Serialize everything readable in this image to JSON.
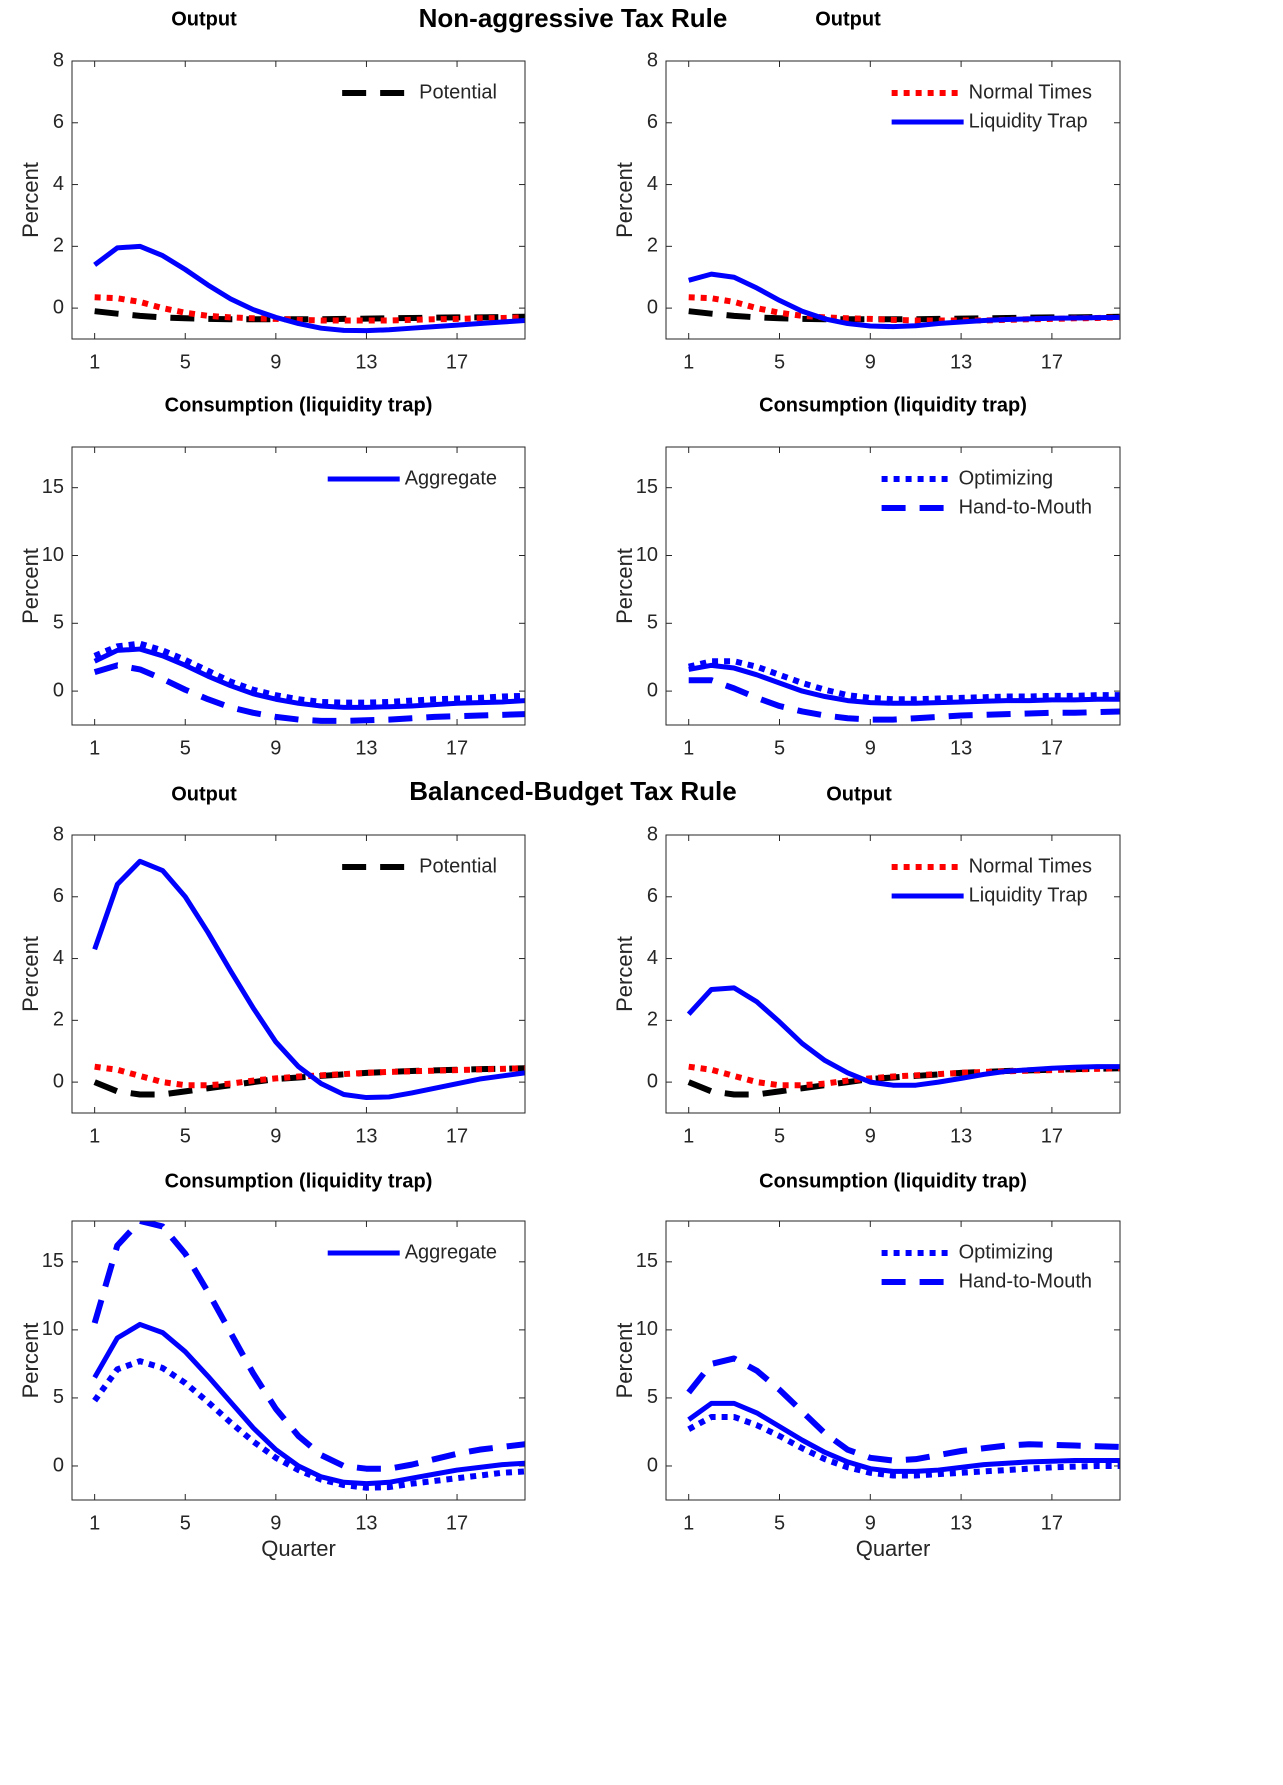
{
  "headings": [
    "Non-aggressive Tax Rule",
    "Balanced-Budget Tax Rule"
  ],
  "chart_data": [
    {
      "type": "line",
      "title": "Output",
      "ylabel": "Percent",
      "x": [
        1,
        2,
        3,
        4,
        5,
        6,
        7,
        8,
        9,
        10,
        11,
        12,
        13,
        14,
        15,
        16,
        17,
        18,
        19,
        20
      ],
      "xlim": [
        0,
        20
      ],
      "xticks": [
        1,
        5,
        9,
        13,
        17
      ],
      "ylim": [
        -1,
        8
      ],
      "yticks": [
        0,
        2,
        4,
        6,
        8
      ],
      "series": [
        {
          "name": "Potential",
          "color": "#000000",
          "style": "dashed",
          "values": [
            -0.1,
            -0.18,
            -0.25,
            -0.3,
            -0.33,
            -0.35,
            -0.36,
            -0.36,
            -0.36,
            -0.36,
            -0.36,
            -0.35,
            -0.34,
            -0.33,
            -0.32,
            -0.31,
            -0.3,
            -0.3,
            -0.29,
            -0.28
          ]
        },
        {
          "color": "#ff0000",
          "style": "dotted",
          "values": [
            0.35,
            0.32,
            0.2,
            0.0,
            -0.15,
            -0.25,
            -0.3,
            -0.33,
            -0.35,
            -0.38,
            -0.4,
            -0.4,
            -0.4,
            -0.4,
            -0.38,
            -0.36,
            -0.35,
            -0.33,
            -0.32,
            -0.3
          ]
        },
        {
          "color": "#0000ff",
          "style": "solid",
          "values": [
            1.4,
            1.95,
            2.0,
            1.7,
            1.25,
            0.75,
            0.3,
            -0.05,
            -0.3,
            -0.5,
            -0.65,
            -0.72,
            -0.73,
            -0.7,
            -0.65,
            -0.6,
            -0.55,
            -0.5,
            -0.45,
            -0.4
          ]
        }
      ]
    },
    {
      "type": "line",
      "title": "Output",
      "ylabel": "Percent",
      "x": [
        1,
        2,
        3,
        4,
        5,
        6,
        7,
        8,
        9,
        10,
        11,
        12,
        13,
        14,
        15,
        16,
        17,
        18,
        19,
        20
      ],
      "xlim": [
        0,
        20
      ],
      "xticks": [
        1,
        5,
        9,
        13,
        17
      ],
      "ylim": [
        -1,
        8
      ],
      "yticks": [
        0,
        2,
        4,
        6,
        8
      ],
      "series": [
        {
          "color": "#000000",
          "style": "dashed",
          "values": [
            -0.1,
            -0.18,
            -0.25,
            -0.3,
            -0.33,
            -0.35,
            -0.36,
            -0.36,
            -0.36,
            -0.36,
            -0.36,
            -0.35,
            -0.34,
            -0.33,
            -0.32,
            -0.31,
            -0.3,
            -0.3,
            -0.29,
            -0.28
          ]
        },
        {
          "name": "Normal Times",
          "color": "#ff0000",
          "style": "dotted",
          "values": [
            0.35,
            0.32,
            0.2,
            0.0,
            -0.15,
            -0.25,
            -0.3,
            -0.33,
            -0.35,
            -0.38,
            -0.4,
            -0.4,
            -0.4,
            -0.4,
            -0.38,
            -0.36,
            -0.35,
            -0.33,
            -0.32,
            -0.3
          ]
        },
        {
          "name": "Liquidity Trap",
          "color": "#0000ff",
          "style": "solid",
          "values": [
            0.9,
            1.1,
            1.0,
            0.65,
            0.25,
            -0.1,
            -0.35,
            -0.5,
            -0.58,
            -0.6,
            -0.57,
            -0.5,
            -0.45,
            -0.4,
            -0.37,
            -0.35,
            -0.33,
            -0.32,
            -0.31,
            -0.3
          ]
        }
      ]
    },
    {
      "type": "line",
      "title": "Consumption (liquidity trap)",
      "ylabel": "Percent",
      "x": [
        1,
        2,
        3,
        4,
        5,
        6,
        7,
        8,
        9,
        10,
        11,
        12,
        13,
        14,
        15,
        16,
        17,
        18,
        19,
        20
      ],
      "xlim": [
        0,
        20
      ],
      "xticks": [
        1,
        5,
        9,
        13,
        17
      ],
      "ylim": [
        -2.5,
        18
      ],
      "yticks": [
        0,
        5,
        10,
        15
      ],
      "series": [
        {
          "name": "Aggregate",
          "color": "#0000ff",
          "style": "solid",
          "values": [
            2.2,
            3.0,
            3.1,
            2.6,
            1.9,
            1.1,
            0.4,
            -0.2,
            -0.6,
            -0.9,
            -1.1,
            -1.2,
            -1.2,
            -1.15,
            -1.1,
            -1.0,
            -0.9,
            -0.85,
            -0.8,
            -0.7
          ]
        },
        {
          "color": "#0000ff",
          "style": "dotted",
          "values": [
            2.6,
            3.3,
            3.5,
            3.0,
            2.3,
            1.5,
            0.7,
            0.1,
            -0.3,
            -0.6,
            -0.8,
            -0.85,
            -0.85,
            -0.8,
            -0.7,
            -0.6,
            -0.55,
            -0.5,
            -0.4,
            -0.35
          ]
        },
        {
          "color": "#0000ff",
          "style": "dashed",
          "values": [
            1.4,
            1.9,
            1.6,
            0.9,
            0.1,
            -0.6,
            -1.2,
            -1.6,
            -1.9,
            -2.1,
            -2.2,
            -2.2,
            -2.15,
            -2.1,
            -2.0,
            -1.9,
            -1.85,
            -1.8,
            -1.75,
            -1.7
          ]
        }
      ]
    },
    {
      "type": "line",
      "title": "Consumption (liquidity trap)",
      "ylabel": "Percent",
      "x": [
        1,
        2,
        3,
        4,
        5,
        6,
        7,
        8,
        9,
        10,
        11,
        12,
        13,
        14,
        15,
        16,
        17,
        18,
        19,
        20
      ],
      "xlim": [
        0,
        20
      ],
      "xticks": [
        1,
        5,
        9,
        13,
        17
      ],
      "ylim": [
        -2.5,
        18
      ],
      "yticks": [
        0,
        5,
        10,
        15
      ],
      "series": [
        {
          "color": "#0000ff",
          "style": "solid",
          "values": [
            1.6,
            1.9,
            1.7,
            1.2,
            0.6,
            0.0,
            -0.4,
            -0.7,
            -0.85,
            -0.9,
            -0.9,
            -0.85,
            -0.8,
            -0.75,
            -0.7,
            -0.7,
            -0.65,
            -0.65,
            -0.6,
            -0.6
          ]
        },
        {
          "name": "Optimizing",
          "color": "#0000ff",
          "style": "dotted",
          "values": [
            1.8,
            2.2,
            2.2,
            1.8,
            1.2,
            0.6,
            0.1,
            -0.3,
            -0.5,
            -0.6,
            -0.6,
            -0.55,
            -0.5,
            -0.45,
            -0.4,
            -0.4,
            -0.35,
            -0.35,
            -0.3,
            -0.3
          ]
        },
        {
          "name": "Hand-to-Mouth",
          "color": "#0000ff",
          "style": "dashed",
          "values": [
            0.8,
            0.8,
            0.2,
            -0.5,
            -1.1,
            -1.5,
            -1.8,
            -2.0,
            -2.1,
            -2.1,
            -2.0,
            -1.9,
            -1.8,
            -1.75,
            -1.7,
            -1.65,
            -1.6,
            -1.6,
            -1.55,
            -1.5
          ]
        }
      ]
    },
    {
      "type": "line",
      "title": "Output",
      "ylabel": "Percent",
      "x": [
        1,
        2,
        3,
        4,
        5,
        6,
        7,
        8,
        9,
        10,
        11,
        12,
        13,
        14,
        15,
        16,
        17,
        18,
        19,
        20
      ],
      "xlim": [
        0,
        20
      ],
      "xticks": [
        1,
        5,
        9,
        13,
        17
      ],
      "ylim": [
        -1,
        8
      ],
      "yticks": [
        0,
        2,
        4,
        6,
        8
      ],
      "series": [
        {
          "name": "Potential",
          "color": "#000000",
          "style": "dashed",
          "values": [
            0.0,
            -0.3,
            -0.4,
            -0.4,
            -0.3,
            -0.2,
            -0.1,
            0.0,
            0.1,
            0.15,
            0.2,
            0.25,
            0.3,
            0.33,
            0.36,
            0.38,
            0.4,
            0.42,
            0.43,
            0.45
          ]
        },
        {
          "color": "#ff0000",
          "style": "dotted",
          "values": [
            0.5,
            0.4,
            0.2,
            0.0,
            -0.1,
            -0.1,
            -0.05,
            0.05,
            0.12,
            0.18,
            0.22,
            0.26,
            0.3,
            0.33,
            0.35,
            0.37,
            0.39,
            0.41,
            0.43,
            0.45
          ]
        },
        {
          "color": "#0000ff",
          "style": "solid",
          "values": [
            4.3,
            6.4,
            7.15,
            6.85,
            6.0,
            4.85,
            3.6,
            2.4,
            1.3,
            0.5,
            -0.05,
            -0.4,
            -0.5,
            -0.48,
            -0.35,
            -0.2,
            -0.05,
            0.1,
            0.2,
            0.3
          ]
        }
      ]
    },
    {
      "type": "line",
      "title": "Output",
      "ylabel": "Percent",
      "x": [
        1,
        2,
        3,
        4,
        5,
        6,
        7,
        8,
        9,
        10,
        11,
        12,
        13,
        14,
        15,
        16,
        17,
        18,
        19,
        20
      ],
      "xlim": [
        0,
        20
      ],
      "xticks": [
        1,
        5,
        9,
        13,
        17
      ],
      "ylim": [
        -1,
        8
      ],
      "yticks": [
        0,
        2,
        4,
        6,
        8
      ],
      "series": [
        {
          "color": "#000000",
          "style": "dashed",
          "values": [
            0.0,
            -0.3,
            -0.4,
            -0.4,
            -0.3,
            -0.2,
            -0.1,
            0.0,
            0.1,
            0.15,
            0.2,
            0.25,
            0.3,
            0.33,
            0.36,
            0.38,
            0.4,
            0.42,
            0.43,
            0.45
          ]
        },
        {
          "name": "Normal Times",
          "color": "#ff0000",
          "style": "dotted",
          "values": [
            0.5,
            0.4,
            0.2,
            0.0,
            -0.1,
            -0.1,
            -0.05,
            0.05,
            0.12,
            0.18,
            0.22,
            0.26,
            0.3,
            0.33,
            0.35,
            0.37,
            0.39,
            0.41,
            0.43,
            0.45
          ]
        },
        {
          "name": "Liquidity Trap",
          "color": "#0000ff",
          "style": "solid",
          "values": [
            2.2,
            3.0,
            3.05,
            2.6,
            1.95,
            1.25,
            0.7,
            0.3,
            0.0,
            -0.1,
            -0.1,
            0.0,
            0.12,
            0.25,
            0.35,
            0.4,
            0.45,
            0.48,
            0.5,
            0.5
          ]
        }
      ]
    },
    {
      "type": "line",
      "title": "Consumption (liquidity trap)",
      "ylabel": "Percent",
      "xlabel": "Quarter",
      "x": [
        1,
        2,
        3,
        4,
        5,
        6,
        7,
        8,
        9,
        10,
        11,
        12,
        13,
        14,
        15,
        16,
        17,
        18,
        19,
        20
      ],
      "xlim": [
        0,
        20
      ],
      "xticks": [
        1,
        5,
        9,
        13,
        17
      ],
      "ylim": [
        -2.5,
        18
      ],
      "yticks": [
        0,
        5,
        10,
        15
      ],
      "series": [
        {
          "name": "Aggregate",
          "color": "#0000ff",
          "style": "solid",
          "values": [
            6.5,
            9.4,
            10.4,
            9.8,
            8.4,
            6.6,
            4.7,
            2.8,
            1.2,
            0.0,
            -0.8,
            -1.2,
            -1.3,
            -1.2,
            -0.9,
            -0.6,
            -0.3,
            -0.1,
            0.1,
            0.2
          ]
        },
        {
          "color": "#0000ff",
          "style": "dotted",
          "values": [
            4.8,
            7.1,
            7.7,
            7.2,
            6.1,
            4.7,
            3.2,
            1.8,
            0.6,
            -0.3,
            -1.0,
            -1.4,
            -1.6,
            -1.55,
            -1.3,
            -1.1,
            -0.9,
            -0.7,
            -0.5,
            -0.4
          ]
        },
        {
          "color": "#0000ff",
          "style": "dashed",
          "values": [
            10.5,
            16.2,
            18.0,
            17.6,
            15.6,
            12.8,
            9.8,
            6.8,
            4.2,
            2.2,
            0.8,
            0.0,
            -0.2,
            -0.2,
            0.1,
            0.5,
            0.9,
            1.2,
            1.4,
            1.6
          ]
        }
      ]
    },
    {
      "type": "line",
      "title": "Consumption (liquidity trap)",
      "ylabel": "Percent",
      "xlabel": "Quarter",
      "x": [
        1,
        2,
        3,
        4,
        5,
        6,
        7,
        8,
        9,
        10,
        11,
        12,
        13,
        14,
        15,
        16,
        17,
        18,
        19,
        20
      ],
      "xlim": [
        0,
        20
      ],
      "xticks": [
        1,
        5,
        9,
        13,
        17
      ],
      "ylim": [
        -2.5,
        18
      ],
      "yticks": [
        0,
        5,
        10,
        15
      ],
      "series": [
        {
          "color": "#0000ff",
          "style": "solid",
          "values": [
            3.4,
            4.6,
            4.6,
            3.9,
            2.9,
            1.9,
            1.0,
            0.3,
            -0.2,
            -0.4,
            -0.4,
            -0.3,
            -0.1,
            0.1,
            0.2,
            0.3,
            0.35,
            0.4,
            0.4,
            0.4
          ]
        },
        {
          "name": "Optimizing",
          "color": "#0000ff",
          "style": "dotted",
          "values": [
            2.7,
            3.6,
            3.6,
            3.0,
            2.2,
            1.3,
            0.5,
            -0.1,
            -0.5,
            -0.7,
            -0.7,
            -0.6,
            -0.5,
            -0.4,
            -0.3,
            -0.2,
            -0.1,
            -0.05,
            0.0,
            0.0
          ]
        },
        {
          "name": "Hand-to-Mouth",
          "color": "#0000ff",
          "style": "dashed",
          "values": [
            5.4,
            7.5,
            7.9,
            7.0,
            5.6,
            4.0,
            2.4,
            1.2,
            0.6,
            0.4,
            0.5,
            0.8,
            1.1,
            1.3,
            1.5,
            1.6,
            1.55,
            1.5,
            1.45,
            1.4
          ]
        }
      ]
    }
  ]
}
